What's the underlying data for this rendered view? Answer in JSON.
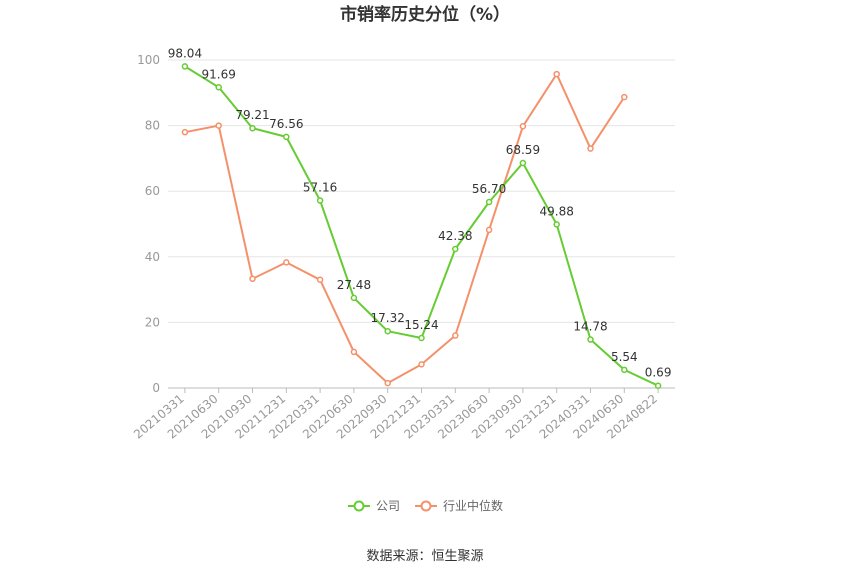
{
  "chart_data": {
    "type": "line",
    "title": "市销率历史分位（%）",
    "xlabel": "",
    "ylabel": "",
    "ylim": [
      0,
      100
    ],
    "yticks": [
      "0",
      "20",
      "40",
      "60",
      "80",
      "100"
    ],
    "grid": true,
    "legend_position": "bottom",
    "categories": [
      "20210331",
      "20210630",
      "20210930",
      "20211231",
      "20220331",
      "20220630",
      "20220930",
      "20221231",
      "20230331",
      "20230630",
      "20230930",
      "20231231",
      "20240331",
      "20240630",
      "20240822"
    ],
    "series": [
      {
        "name": "公司",
        "color": "#66cc33",
        "values": [
          98.04,
          91.69,
          79.21,
          76.56,
          57.16,
          27.48,
          17.32,
          15.24,
          42.38,
          56.7,
          68.59,
          49.88,
          14.78,
          5.54,
          0.69
        ],
        "labels": [
          "98.04",
          "91.69",
          "79.21",
          "76.56",
          "57.16",
          "27.48",
          "17.32",
          "15.24",
          "42.38",
          "56.70",
          "68.59",
          "49.88",
          "14.78",
          "5.54",
          "0.69"
        ]
      },
      {
        "name": "行业中位数",
        "color": "#f4916b",
        "values": [
          78,
          80,
          33.3,
          38.3,
          33,
          11,
          1.5,
          7.2,
          16,
          48.2,
          79.8,
          95.7,
          73,
          88.7,
          null
        ]
      }
    ]
  },
  "source_text": "数据来源：恒生聚源"
}
